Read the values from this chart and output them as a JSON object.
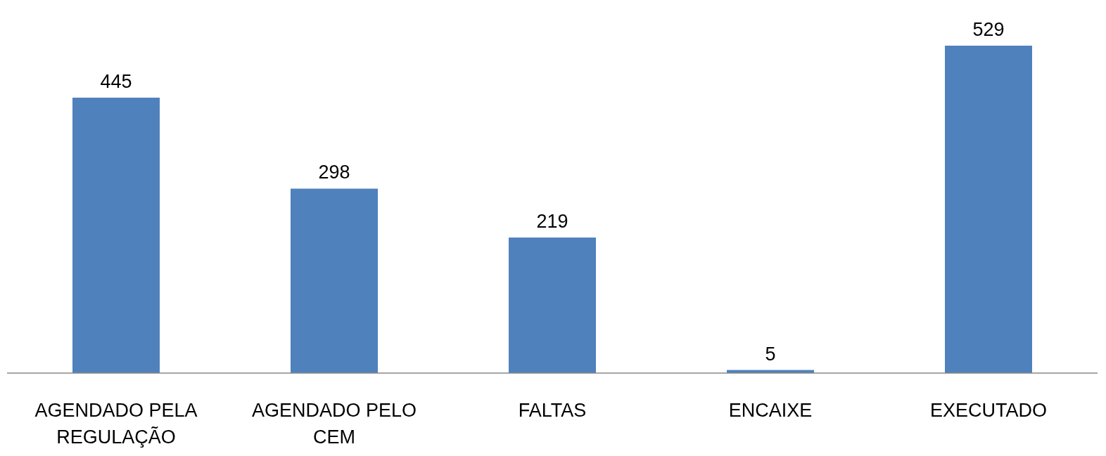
{
  "chart_data": {
    "type": "bar",
    "categories": [
      "AGENDADO PELA REGULAÇÃO",
      "AGENDADO PELO CEM",
      "FALTAS",
      "ENCAIXE",
      "EXECUTADO"
    ],
    "values": [
      445,
      298,
      219,
      5,
      529
    ],
    "color": "#4f81bd",
    "data_labels": true
  }
}
